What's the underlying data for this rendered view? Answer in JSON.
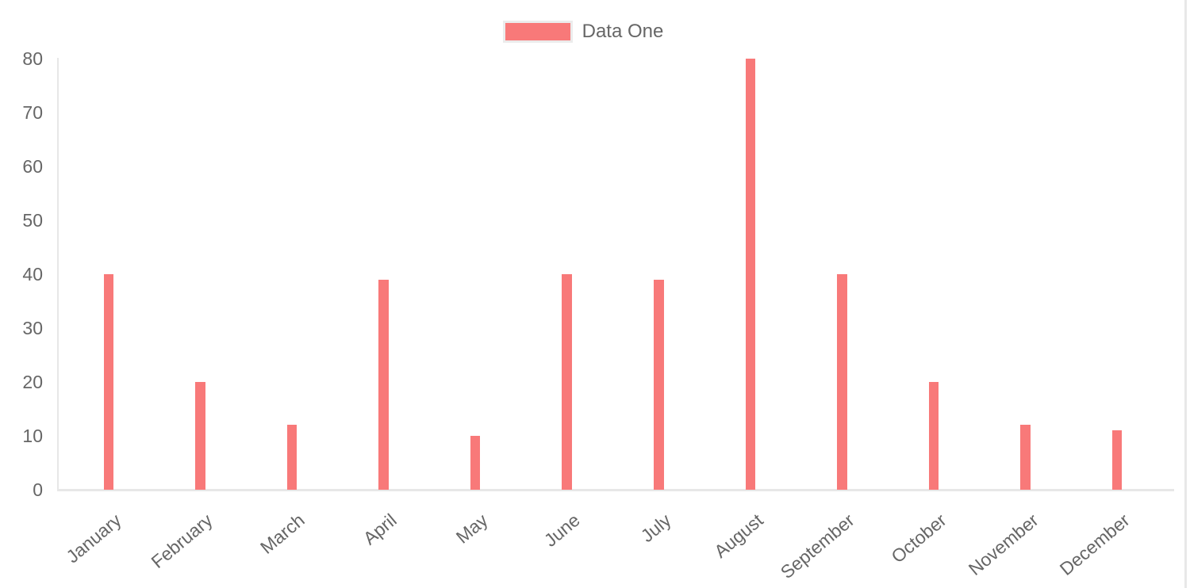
{
  "chart_data": {
    "type": "bar",
    "title": "",
    "categories": [
      "January",
      "February",
      "March",
      "April",
      "May",
      "June",
      "July",
      "August",
      "September",
      "October",
      "November",
      "December"
    ],
    "series": [
      {
        "name": "Data One",
        "color": "#f87979",
        "values": [
          40,
          20,
          12,
          39,
          10,
          40,
          39,
          80,
          40,
          20,
          12,
          11
        ]
      }
    ],
    "xlabel": "",
    "ylabel": "",
    "ylim": [
      0,
      80
    ],
    "yticks": [
      0,
      10,
      20,
      30,
      40,
      50,
      60,
      70,
      80
    ],
    "grid": false,
    "legend_position": "top",
    "x_label_rotation_deg": -40,
    "colors": {
      "axis_line": "#e7e7e7",
      "tick_label": "#666666",
      "legend_label": "#666666",
      "legend_box_border": "#ececec",
      "background": "#ffffff"
    }
  }
}
